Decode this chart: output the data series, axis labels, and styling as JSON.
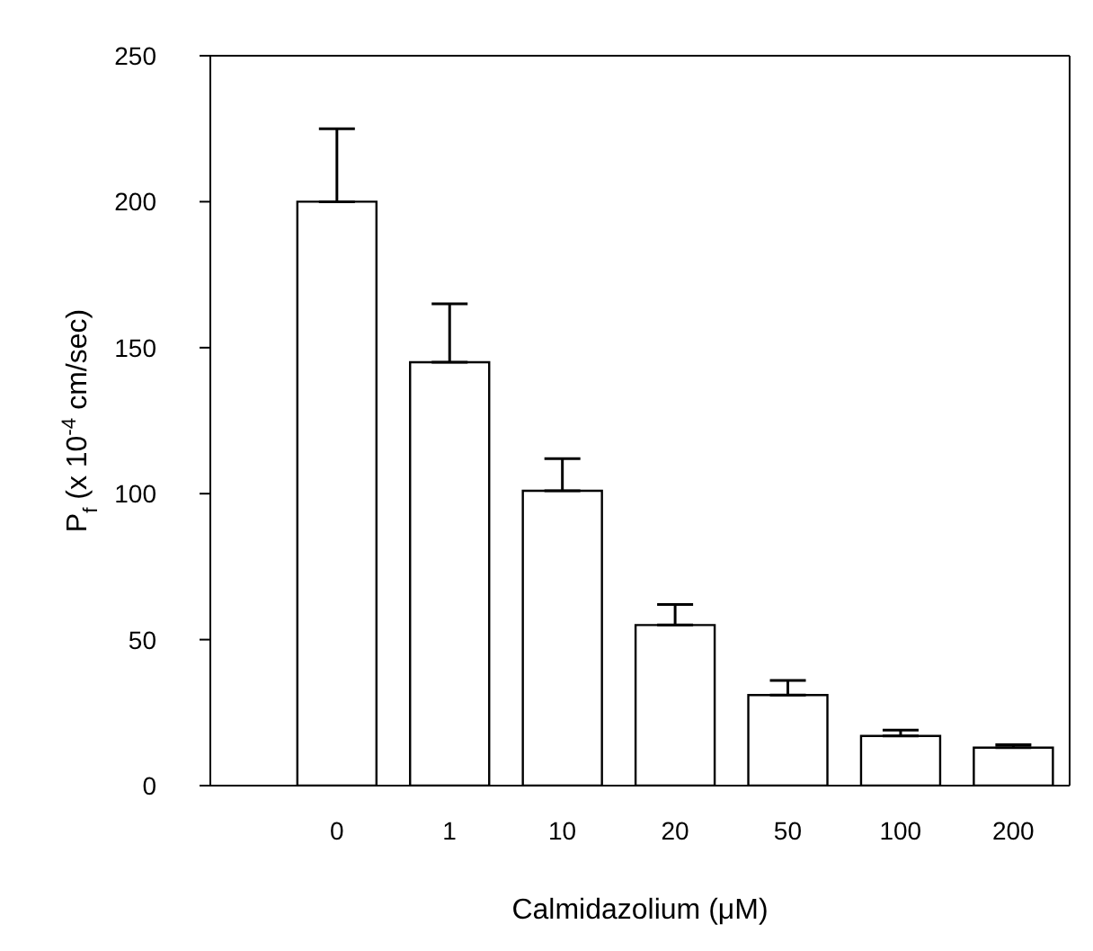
{
  "chart_data": {
    "type": "bar",
    "xlabel": "Calmidazolium (μM)",
    "ylabel": "P$_{f}$ (x 10$^{-4}$ cm/sec)",
    "categories": [
      "0",
      "1",
      "10",
      "20",
      "50",
      "100",
      "200"
    ],
    "values": [
      200,
      145,
      101,
      55,
      31,
      17,
      13
    ],
    "errors": [
      [
        200,
        225
      ],
      [
        145,
        165
      ],
      [
        101,
        112
      ],
      [
        55,
        62
      ],
      [
        31,
        36
      ],
      [
        17,
        19
      ],
      [
        13,
        14
      ]
    ],
    "color": "#ffffff",
    "ylim": [
      0,
      250
    ],
    "yticks": [
      0,
      50,
      100,
      150,
      200,
      250
    ],
    "grid": false,
    "legend": false
  }
}
